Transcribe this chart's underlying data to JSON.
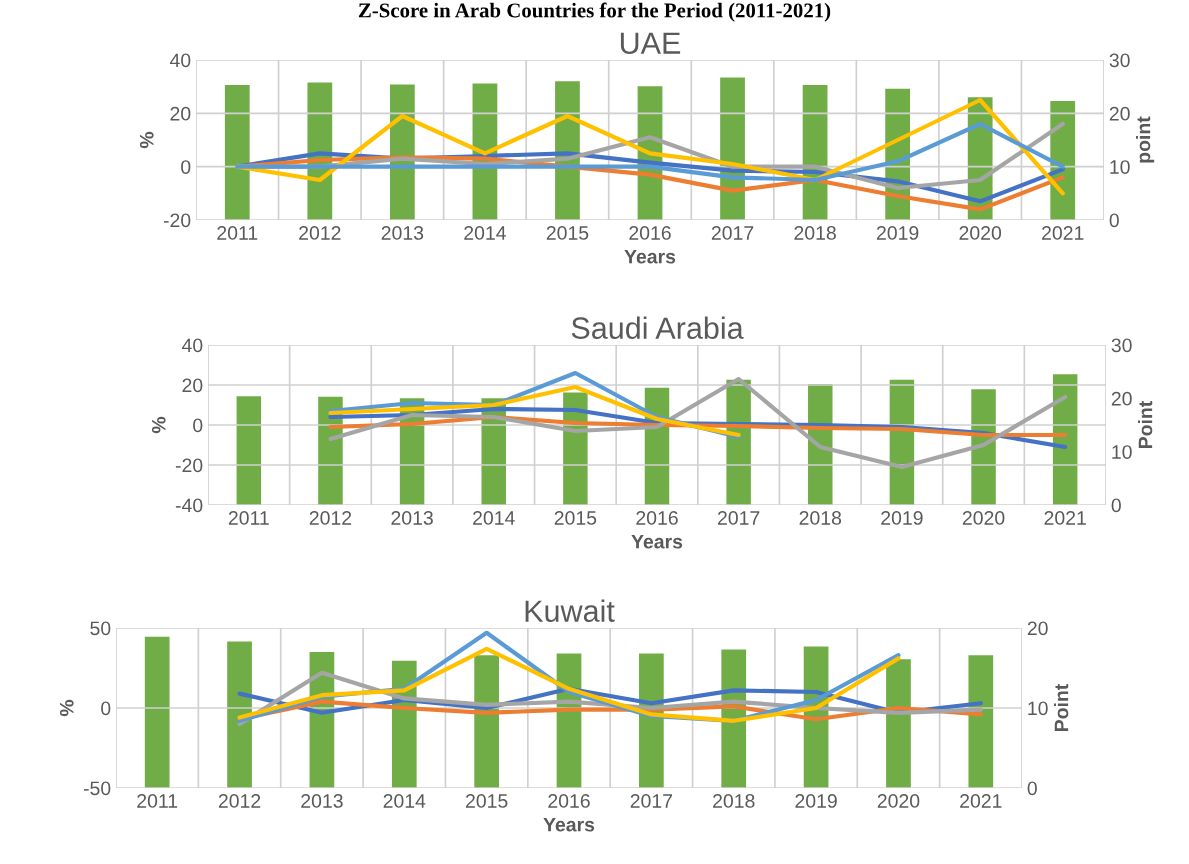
{
  "chart_data": [
    {
      "type": "bar",
      "title": "UAE",
      "xlabel": "Years",
      "ylabel": "%",
      "y2label": "point",
      "grid": true,
      "annotations": [
        "Z-Score in Arab Countries for the Period (2011-2021)"
      ],
      "categories": [
        "2011",
        "2012",
        "2013",
        "2014",
        "2015",
        "2016",
        "2017",
        "2018",
        "2019",
        "2020",
        "2021"
      ],
      "ylim": [
        -20,
        40
      ],
      "yticks": [
        -20,
        0,
        20,
        40
      ],
      "y2lim": [
        0,
        30
      ],
      "y2ticks": [
        0,
        10,
        20,
        30
      ],
      "series": [
        {
          "axis": "y2",
          "color": "#70ad47",
          "values": [
            25.3,
            25.8,
            25.4,
            25.6,
            26,
            25.1,
            26.7,
            25.3,
            24.6,
            23,
            22.3
          ]
        },
        {
          "type": "line",
          "color": "#4472c4",
          "values": [
            0,
            5,
            3,
            4,
            5,
            1.5,
            -1.5,
            -2,
            -5.5,
            -13,
            -1
          ]
        },
        {
          "type": "line",
          "color": "#ed7d31",
          "values": [
            0,
            2.5,
            3.5,
            3,
            0,
            -3,
            -9,
            -5,
            -11,
            -16,
            -4
          ]
        },
        {
          "type": "line",
          "color": "#a5a5a5",
          "values": [
            0,
            0,
            3,
            1,
            3,
            11,
            0,
            0,
            -8,
            -5,
            16
          ]
        },
        {
          "type": "line",
          "color": "#ffc000",
          "values": [
            0,
            -5,
            19,
            5,
            19,
            5,
            1,
            -5,
            10,
            25,
            -10
          ]
        },
        {
          "type": "line",
          "color": "#5b9bd5",
          "values": [
            0,
            0,
            0,
            0,
            0,
            0,
            -4,
            -5,
            2,
            16,
            0
          ]
        }
      ]
    },
    {
      "type": "bar",
      "title": "Saudi Arabia",
      "xlabel": "Years",
      "ylabel": "%",
      "y2label": "Point",
      "grid": true,
      "categories": [
        "2011",
        "2012",
        "2013",
        "2014",
        "2015",
        "2016",
        "2017",
        "2018",
        "2019",
        "2020",
        "2021"
      ],
      "ylim": [
        -40,
        40
      ],
      "yticks": [
        -40,
        -20,
        0,
        20,
        40
      ],
      "y2lim": [
        0,
        30
      ],
      "y2ticks": [
        0,
        10,
        20,
        30
      ],
      "series": [
        {
          "axis": "y2",
          "color": "#70ad47",
          "values": [
            20.4,
            20.3,
            20,
            20,
            21.1,
            22,
            23.5,
            22.7,
            23.5,
            21.7,
            24.5
          ]
        },
        {
          "type": "line",
          "color": "#4472c4",
          "values": [
            null,
            4,
            5,
            8,
            7.5,
            1,
            0.5,
            0,
            -1,
            -4,
            -11
          ]
        },
        {
          "type": "line",
          "color": "#ed7d31",
          "values": [
            null,
            -1,
            0.5,
            4,
            1,
            0,
            -0.5,
            -1.5,
            -2,
            -5,
            -5
          ]
        },
        {
          "type": "line",
          "color": "#a5a5a5",
          "values": [
            null,
            -7,
            5,
            4,
            -3,
            -1,
            23,
            -11,
            -21,
            -10,
            14
          ]
        },
        {
          "type": "line",
          "color": "#5b9bd5",
          "values": [
            null,
            7,
            11,
            10,
            26,
            4,
            -6,
            null,
            null,
            null,
            null
          ]
        },
        {
          "type": "line",
          "color": "#ffc000",
          "values": [
            null,
            6,
            8,
            10,
            19,
            3,
            -5,
            null,
            null,
            null,
            null
          ]
        }
      ]
    },
    {
      "type": "bar",
      "title": "Kuwait",
      "xlabel": "Years",
      "ylabel": "%",
      "y2label": "Point",
      "grid": true,
      "categories": [
        "2011",
        "2012",
        "2013",
        "2014",
        "2015",
        "2016",
        "2017",
        "2018",
        "2019",
        "2020",
        "2021"
      ],
      "ylim": [
        -50,
        50
      ],
      "yticks": [
        -50,
        0,
        50
      ],
      "y2lim": [
        0,
        20
      ],
      "y2ticks": [
        0,
        10,
        20
      ],
      "series": [
        {
          "axis": "y2",
          "color": "#70ad47",
          "values": [
            18.9,
            18.3,
            17,
            15.9,
            16.6,
            16.8,
            16.8,
            17.3,
            17.7,
            16.1,
            16.6
          ]
        },
        {
          "type": "line",
          "color": "#4472c4",
          "values": [
            null,
            9,
            -3,
            5,
            0,
            12,
            3,
            11,
            10,
            -3,
            3
          ]
        },
        {
          "type": "line",
          "color": "#ed7d31",
          "values": [
            null,
            -7,
            4,
            0,
            -3,
            -1,
            -1,
            1,
            -7,
            0,
            -4
          ]
        },
        {
          "type": "line",
          "color": "#a5a5a5",
          "values": [
            null,
            -10,
            22,
            6,
            2,
            4,
            0,
            4,
            0,
            -3,
            -1
          ]
        },
        {
          "type": "line",
          "color": "#5b9bd5",
          "values": [
            null,
            -8,
            7,
            12,
            47,
            10,
            -5,
            -8,
            5,
            33,
            null
          ]
        },
        {
          "type": "line",
          "color": "#ffc000",
          "values": [
            null,
            -6,
            8,
            11,
            37,
            12,
            -4,
            -8,
            0,
            31,
            null
          ]
        }
      ]
    }
  ]
}
